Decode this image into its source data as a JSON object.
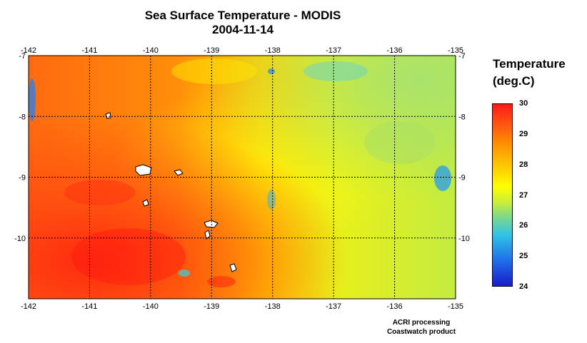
{
  "title": {
    "line1": "Sea Surface Temperature - MODIS",
    "line2": "2004-11-14"
  },
  "map": {
    "lon_range": [
      -142,
      -135
    ],
    "lat_range": [
      -11,
      -7
    ],
    "lon_ticks": [
      "-142",
      "-141",
      "-140",
      "-139",
      "-138",
      "-137",
      "-136",
      "-135"
    ],
    "lat_ticks": [
      "-7",
      "-8",
      "-9",
      "-10"
    ],
    "gridlines": true
  },
  "legend": {
    "title_line1": "Temperature",
    "title_line2": "(deg.C)",
    "scale_min": 24,
    "scale_max": 30,
    "ticks": [
      "30",
      "29",
      "28",
      "27",
      "26",
      "25",
      "24"
    ]
  },
  "credit": {
    "line1": "ACRI processing",
    "line2": "Coastwatch product"
  },
  "colors": {
    "warm": "#ff2a10",
    "mid": "#ffee00",
    "cool": "#2fc3e6",
    "land": "#ffffff"
  }
}
